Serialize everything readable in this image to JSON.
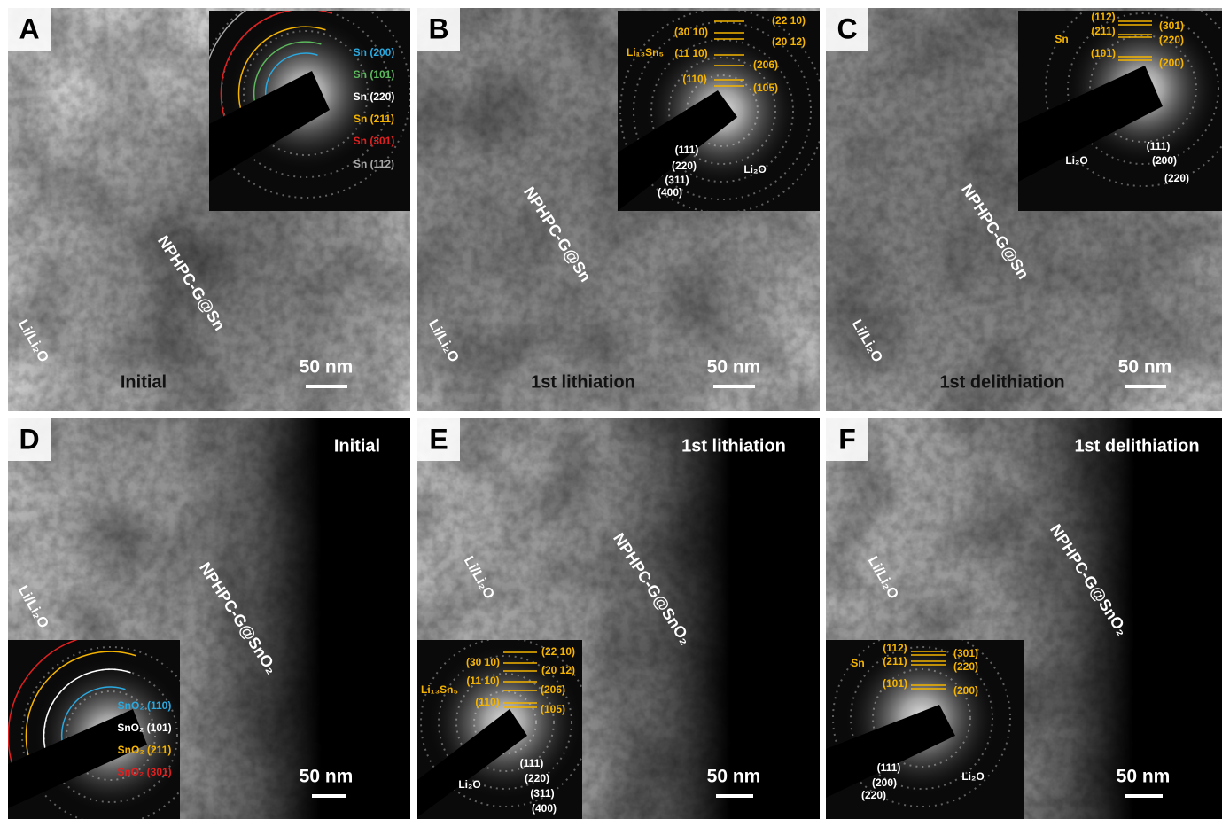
{
  "panels": [
    {
      "letter": "A",
      "condition": "Initial",
      "material": "NPHPC-G@Sn",
      "electrode": "Li/Li₂O",
      "scale": "50 nm",
      "inset": [
        {
          "text": "Sn (200)",
          "color": "#2aa9e0"
        },
        {
          "text": "Sn (101)",
          "color": "#5cb85c"
        },
        {
          "text": "Sn (220)",
          "color": "#ffffff"
        },
        {
          "text": "Sn (211)",
          "color": "#f5b400"
        },
        {
          "text": "Sn (301)",
          "color": "#e02020"
        },
        {
          "text": "Sn (112)",
          "color": "#a8a8a8"
        }
      ]
    },
    {
      "letter": "B",
      "condition": "1st lithiation",
      "material": "NPHPC-G@Sn",
      "electrode": "Li/Li₂O",
      "scale": "50 nm",
      "inset": [
        {
          "text": "(22 10)",
          "color": "#f5b400"
        },
        {
          "text": "(30 10)",
          "color": "#f5b400"
        },
        {
          "text": "(20 12)",
          "color": "#f5b400"
        },
        {
          "text": "Li₁₃Sn₅",
          "color": "#f5b400"
        },
        {
          "text": "(11 10)",
          "color": "#f5b400"
        },
        {
          "text": "(206)",
          "color": "#f5b400"
        },
        {
          "text": "(110)",
          "color": "#f5b400"
        },
        {
          "text": "(105)",
          "color": "#f5b400"
        },
        {
          "text": "(111)",
          "color": "#ffffff"
        },
        {
          "text": "(220)",
          "color": "#ffffff"
        },
        {
          "text": "Li₂O",
          "color": "#ffffff"
        },
        {
          "text": "(311)",
          "color": "#ffffff"
        },
        {
          "text": "(400)",
          "color": "#ffffff"
        }
      ]
    },
    {
      "letter": "C",
      "condition": "1st delithiation",
      "material": "NPHPC-G@Sn",
      "electrode": "Li/Li₂O",
      "scale": "50 nm",
      "inset": [
        {
          "text": "(112)",
          "color": "#f5b400"
        },
        {
          "text": "(301)",
          "color": "#f5b400"
        },
        {
          "text": "Sn",
          "color": "#f5b400"
        },
        {
          "text": "(211)",
          "color": "#f5b400"
        },
        {
          "text": "(220)",
          "color": "#f5b400"
        },
        {
          "text": "(101)",
          "color": "#f5b400"
        },
        {
          "text": "(200)",
          "color": "#f5b400"
        },
        {
          "text": "(111)",
          "color": "#ffffff"
        },
        {
          "text": "Li₂O",
          "color": "#ffffff"
        },
        {
          "text": "(200)",
          "color": "#ffffff"
        },
        {
          "text": "(220)",
          "color": "#ffffff"
        }
      ]
    },
    {
      "letter": "D",
      "condition": "Initial",
      "material": "NPHPC-G@SnO₂",
      "electrode": "Li/Li₂O",
      "scale": "50 nm",
      "inset": [
        {
          "text": "SnO₂ (110)",
          "color": "#2aa9e0"
        },
        {
          "text": "SnO₂ (101)",
          "color": "#ffffff"
        },
        {
          "text": "SnO₂ (211)",
          "color": "#f5b400"
        },
        {
          "text": "SnO₂ (301)",
          "color": "#e02020"
        }
      ]
    },
    {
      "letter": "E",
      "condition": "1st lithiation",
      "material": "NPHPC-G@SnO₂",
      "electrode": "Li/Li₂O",
      "scale": "50 nm",
      "inset": [
        {
          "text": "(22 10)",
          "color": "#f5b400"
        },
        {
          "text": "(30 10)",
          "color": "#f5b400"
        },
        {
          "text": "(20 12)",
          "color": "#f5b400"
        },
        {
          "text": "Li₁₃Sn₅",
          "color": "#f5b400"
        },
        {
          "text": "(11 10)",
          "color": "#f5b400"
        },
        {
          "text": "(206)",
          "color": "#f5b400"
        },
        {
          "text": "(110)",
          "color": "#f5b400"
        },
        {
          "text": "(105)",
          "color": "#f5b400"
        },
        {
          "text": "(111)",
          "color": "#ffffff"
        },
        {
          "text": "(220)",
          "color": "#ffffff"
        },
        {
          "text": "Li₂O",
          "color": "#ffffff"
        },
        {
          "text": "(311)",
          "color": "#ffffff"
        },
        {
          "text": "(400)",
          "color": "#ffffff"
        }
      ]
    },
    {
      "letter": "F",
      "condition": "1st delithiation",
      "material": "NPHPC-G@SnO₂",
      "electrode": "Li/Li₂O",
      "scale": "50 nm",
      "inset": [
        {
          "text": "(112)",
          "color": "#f5b400"
        },
        {
          "text": "(301)",
          "color": "#f5b400"
        },
        {
          "text": "Sn",
          "color": "#f5b400"
        },
        {
          "text": "(211)",
          "color": "#f5b400"
        },
        {
          "text": "(220)",
          "color": "#f5b400"
        },
        {
          "text": "(101)",
          "color": "#f5b400"
        },
        {
          "text": "(200)",
          "color": "#f5b400"
        },
        {
          "text": "(111)",
          "color": "#ffffff"
        },
        {
          "text": "Li₂O",
          "color": "#ffffff"
        },
        {
          "text": "(200)",
          "color": "#ffffff"
        },
        {
          "text": "(220)",
          "color": "#ffffff"
        }
      ]
    }
  ]
}
